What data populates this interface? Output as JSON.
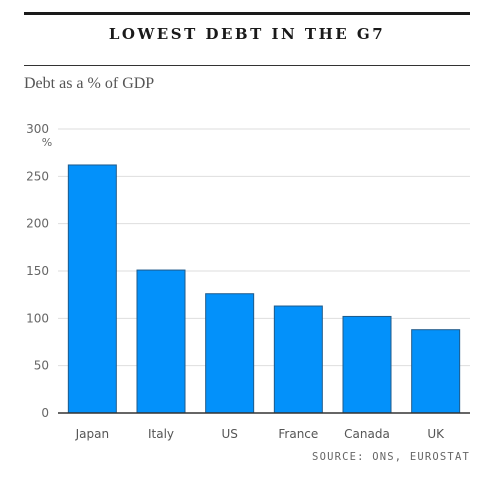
{
  "title": "LOWEST DEBT IN THE G7",
  "subtitle": "Debt as a % of GDP",
  "source": "SOURCE: ONS, EUROSTAT",
  "colors": {
    "bar": "#0391FA",
    "bar_edge": "#1f5a8a",
    "grid": "#dedede",
    "axis": "#333333"
  },
  "chart_data": {
    "type": "bar",
    "categories": [
      "Japan",
      "Italy",
      "US",
      "France",
      "Canada",
      "UK"
    ],
    "values": [
      262,
      151,
      126,
      113,
      102,
      88
    ],
    "title": "LOWEST DEBT IN THE G7",
    "subtitle": "Debt as a % of GDP",
    "ylim": [
      0,
      300
    ],
    "yticks": [
      0,
      50,
      100,
      150,
      200,
      250,
      300
    ],
    "yunit": "%",
    "grid": true
  }
}
